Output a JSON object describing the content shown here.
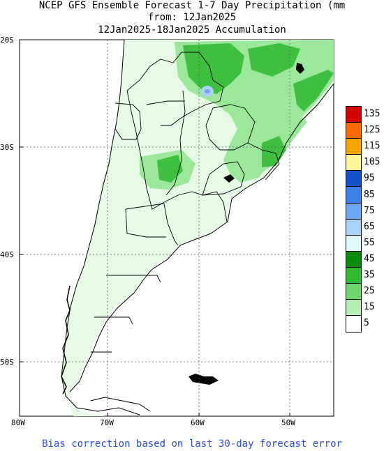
{
  "title": {
    "line1": "NCEP GFS Ensemble Forecast 1-7 Day Precipitation (mm",
    "line2": "from: 12Jan2025",
    "line3": "12Jan2025-18Jan2025 Accumulation"
  },
  "axes": {
    "lat_labels": [
      "20S",
      "30S",
      "40S",
      "50S"
    ],
    "lon_labels": [
      "80W",
      "70W",
      "60W",
      "50W"
    ]
  },
  "legend": {
    "values": [
      "135",
      "125",
      "115",
      "105",
      "95",
      "85",
      "75",
      "65",
      "55",
      "45",
      "35",
      "25",
      "15",
      "5"
    ],
    "colors": [
      "#d40000",
      "#ff6a00",
      "#f5a500",
      "#fff59a",
      "#1450c8",
      "#3c82e6",
      "#6ea6f0",
      "#aad2fa",
      "#e0f8f8",
      "#0a8c0a",
      "#35b935",
      "#6fd36f",
      "#b4ecb4",
      "#ffffff"
    ]
  },
  "footer": "Bias correction based on last 30-day forecast error",
  "colors": {
    "land_light": "#e6fae6",
    "green_mid": "#9be89b",
    "green_strong": "#3fbf3f",
    "ocean": "#ffffff"
  }
}
